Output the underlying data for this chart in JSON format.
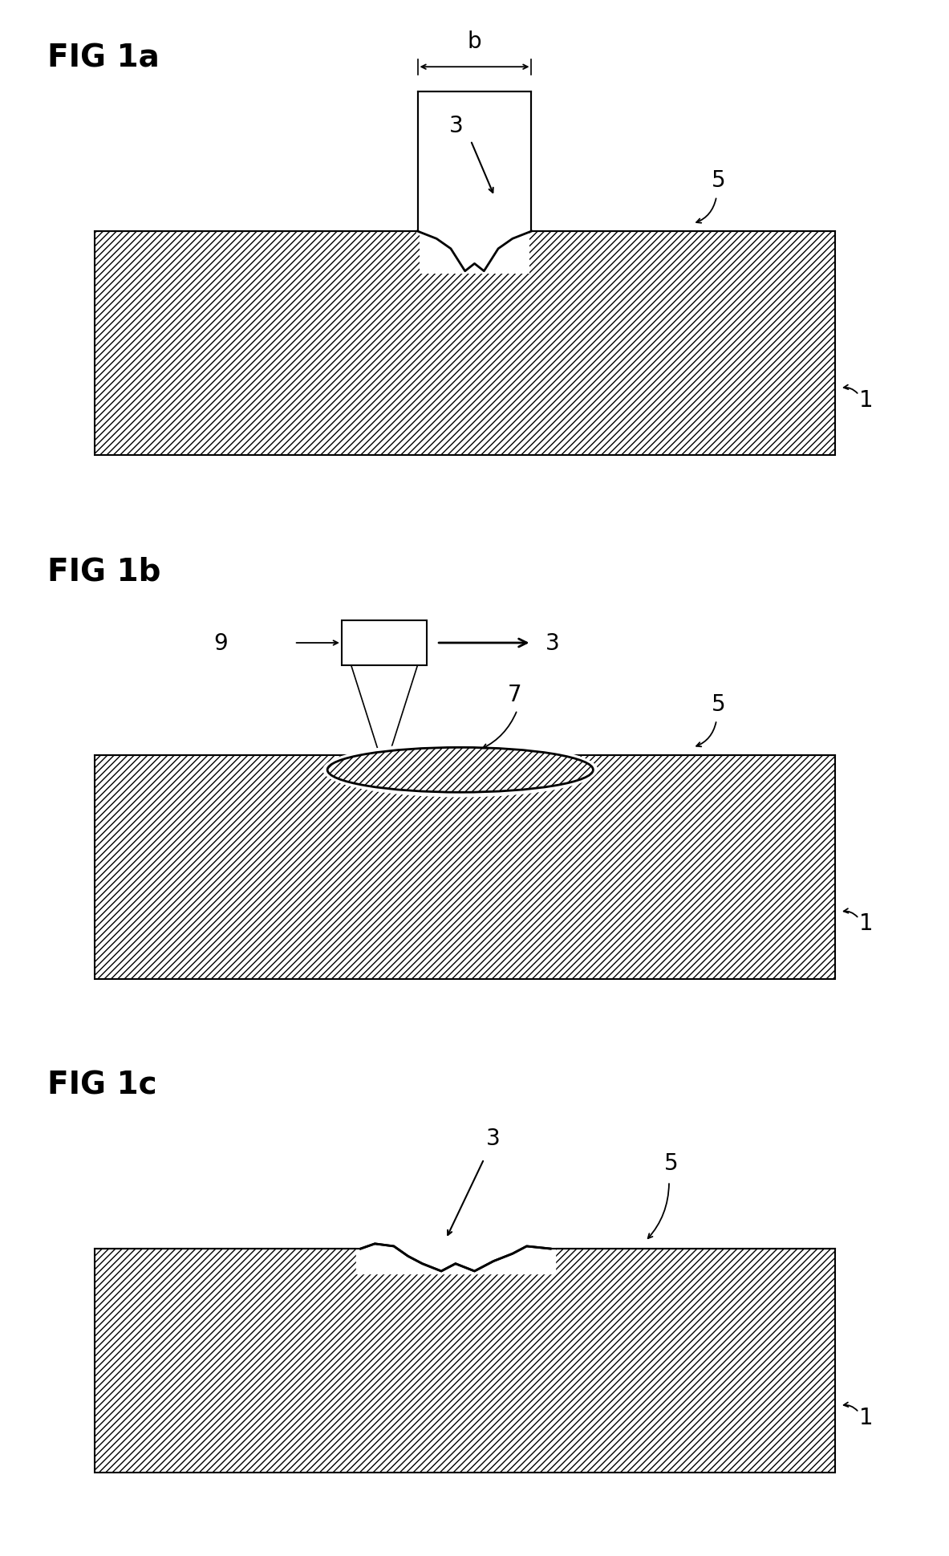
{
  "bg_color": "#ffffff",
  "fig1a_label": "FIG 1a",
  "fig1b_label": "FIG 1b",
  "fig1c_label": "FIG 1c",
  "label_fontsize": 28,
  "num_fontsize": 20,
  "hatch": "////",
  "lw": 1.5
}
